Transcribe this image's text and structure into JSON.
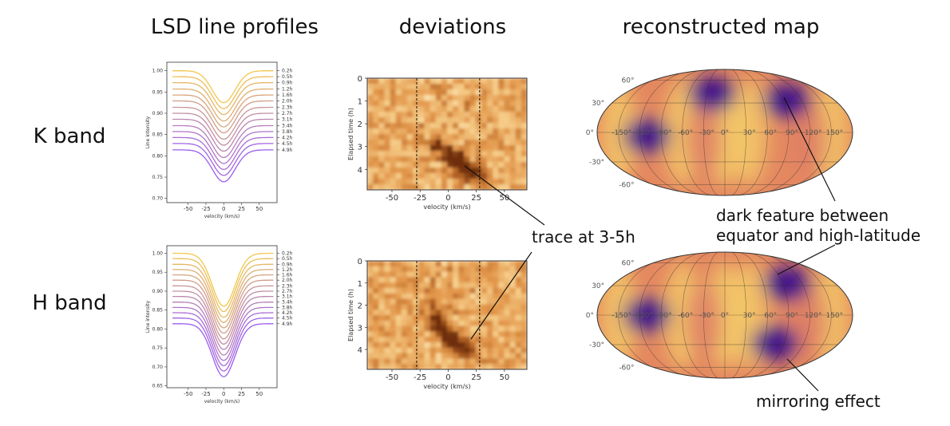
{
  "headings": {
    "profiles": "LSD line profiles",
    "deviations": "deviations",
    "map": "reconstructed map"
  },
  "rows": {
    "k_band": "K band",
    "h_band": "H band"
  },
  "annotations": {
    "trace": "trace at 3-5h",
    "dark_feature_line1": "dark feature between",
    "dark_feature_line2": "equator and high-latitude",
    "mirroring": "mirroring effect"
  },
  "colors": {
    "profile_start": "#f3c64a",
    "profile_end": "#9a5cf0",
    "map_dark": "#3a0a8c",
    "map_bright": "#f6d56a"
  },
  "chart_data": [
    {
      "id": "k_profiles",
      "type": "line",
      "xlabel": "velocity (km/s)",
      "ylabel": "Line intensity",
      "xticks": [
        -50,
        -25,
        0,
        25,
        50
      ],
      "yticks": [
        "0.70",
        "0.75",
        "0.80",
        "0.85",
        "0.90",
        "0.95",
        "1.00"
      ],
      "ylim": [
        0.69,
        1.02
      ],
      "xlim": [
        -80,
        75
      ],
      "time_labels": [
        "0.2h",
        "0.5h",
        "0.9h",
        "1.2h",
        "1.6h",
        "2.0h",
        "2.3h",
        "2.7h",
        "3.1h",
        "3.4h",
        "3.8h",
        "4.2h",
        "4.5h",
        "4.9h"
      ],
      "baselines": [
        1.0,
        0.986,
        0.972,
        0.957,
        0.943,
        0.929,
        0.914,
        0.9,
        0.886,
        0.871,
        0.857,
        0.843,
        0.829,
        0.814
      ],
      "depth": 0.075
    },
    {
      "id": "h_profiles",
      "type": "line",
      "xlabel": "velocity (km/s)",
      "ylabel": "Line intensity",
      "xticks": [
        -50,
        -25,
        0,
        25,
        50
      ],
      "yticks": [
        "0.65",
        "0.70",
        "0.75",
        "0.80",
        "0.85",
        "0.90",
        "0.95",
        "1.00"
      ],
      "ylim": [
        0.645,
        1.02
      ],
      "xlim": [
        -80,
        75
      ],
      "time_labels": [
        "0.2h",
        "0.5h",
        "0.9h",
        "1.2h",
        "1.6h",
        "2.0h",
        "2.3h",
        "2.7h",
        "3.1h",
        "3.4h",
        "3.8h",
        "4.2h",
        "4.5h",
        "4.9h"
      ],
      "baselines": [
        1.0,
        0.986,
        0.971,
        0.957,
        0.943,
        0.929,
        0.914,
        0.9,
        0.886,
        0.871,
        0.857,
        0.843,
        0.829,
        0.814
      ],
      "depth": 0.14
    },
    {
      "id": "k_deviations",
      "type": "heatmap",
      "xlabel": "velocity (km/s)",
      "ylabel": "Elapsed time (h)",
      "xticks": [
        -50,
        -25,
        0,
        25,
        50
      ],
      "yticks": [
        0,
        1,
        2,
        3,
        4
      ],
      "xlim": [
        -72,
        70
      ],
      "ylim": [
        0,
        4.9
      ],
      "dashed_lines": [
        -28,
        28
      ],
      "trace": [
        [
          -10,
          3.0
        ],
        [
          5,
          3.5
        ],
        [
          18,
          4.0
        ],
        [
          25,
          4.3
        ]
      ]
    },
    {
      "id": "h_deviations",
      "type": "heatmap",
      "xlabel": "velocity (km/s)",
      "ylabel": "Elapsed time (h)",
      "xticks": [
        -50,
        -25,
        0,
        25,
        50
      ],
      "yticks": [
        0,
        1,
        2,
        3,
        4
      ],
      "xlim": [
        -72,
        70
      ],
      "ylim": [
        0,
        4.9
      ],
      "dashed_lines": [
        -28,
        28
      ],
      "trace": [
        [
          -12,
          2.2
        ],
        [
          -8,
          3.0
        ],
        [
          5,
          3.7
        ],
        [
          20,
          4.2
        ]
      ]
    },
    {
      "id": "k_map",
      "type": "heatmap",
      "projection": "mollweide",
      "lon_labels": [
        "-150°",
        "-120°",
        "-90°",
        "-60°",
        "-30°",
        "0°",
        "30°",
        "60°",
        "90°",
        "120°",
        "150°"
      ],
      "lat_labels": [
        "60°",
        "30°",
        "0°",
        "-30°",
        "-60°"
      ],
      "dark_spots": [
        {
          "lon": 95,
          "lat": 45
        },
        {
          "lon": -20,
          "lat": 55
        },
        {
          "lon": -110,
          "lat": -5
        }
      ]
    },
    {
      "id": "h_map",
      "type": "heatmap",
      "projection": "mollweide",
      "lon_labels": [
        "-150°",
        "-120°",
        "-90°",
        "-60°",
        "-30°",
        "0°",
        "30°",
        "60°",
        "90°",
        "120°",
        "150°"
      ],
      "lat_labels": [
        "60°",
        "30°",
        "0°",
        "-30°",
        "-60°"
      ],
      "dark_spots": [
        {
          "lon": 95,
          "lat": 45
        },
        {
          "lon": 75,
          "lat": -40
        },
        {
          "lon": -110,
          "lat": 0
        }
      ]
    }
  ]
}
